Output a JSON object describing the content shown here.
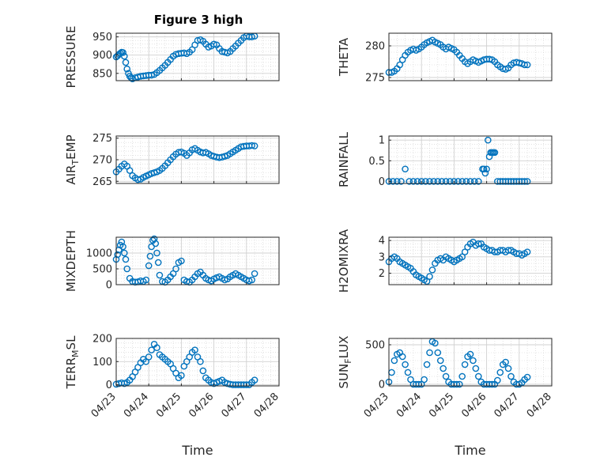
{
  "figure": {
    "title": "Figure 3 high",
    "marker_color": "#0072BD",
    "grid_color": "#d0d0d0",
    "axis_color": "#262626"
  },
  "chart_data": [
    {
      "type": "scatter",
      "title": "Figure 3 high",
      "ylabel": "PRESSURE",
      "xlabel": "",
      "xlim": [
        "04/23",
        "04/28"
      ],
      "ylim": [
        830,
        960
      ],
      "xticks": [],
      "yticks": [
        850,
        900,
        950
      ],
      "x": [
        "04/23 00:00",
        "04/23 01:00",
        "04/23 02:00",
        "04/23 03:00",
        "04/23 04:00",
        "04/23 05:00",
        "04/23 06:00",
        "04/23 07:00",
        "04/23 08:00",
        "04/23 09:00",
        "04/23 10:00",
        "04/23 11:00",
        "04/23 12:00",
        "04/23 14:00",
        "04/23 16:00",
        "04/23 18:00",
        "04/23 20:00",
        "04/23 22:00",
        "04/24 00:00",
        "04/24 02:00",
        "04/24 04:00",
        "04/24 06:00",
        "04/24 08:00",
        "04/24 10:00",
        "04/24 12:00",
        "04/24 14:00",
        "04/24 16:00",
        "04/24 18:00",
        "04/24 20:00",
        "04/24 22:00",
        "04/25 00:00",
        "04/25 02:00",
        "04/25 04:00",
        "04/25 06:00",
        "04/25 08:00",
        "04/25 10:00",
        "04/25 12:00",
        "04/25 14:00",
        "04/25 16:00",
        "04/25 18:00",
        "04/25 20:00",
        "04/25 22:00",
        "04/26 00:00",
        "04/26 02:00",
        "04/26 04:00",
        "04/26 06:00",
        "04/26 08:00",
        "04/26 10:00",
        "04/26 12:00",
        "04/26 14:00",
        "04/26 16:00",
        "04/26 18:00",
        "04/26 20:00",
        "04/26 22:00",
        "04/27 00:00",
        "04/27 02:00",
        "04/27 04:00",
        "04/27 06:00"
      ],
      "values": [
        895,
        898,
        902,
        905,
        908,
        907,
        897,
        880,
        862,
        850,
        842,
        838,
        835,
        838,
        840,
        842,
        843,
        844,
        845,
        845,
        847,
        852,
        858,
        865,
        872,
        880,
        888,
        897,
        902,
        904,
        905,
        906,
        904,
        908,
        915,
        928,
        940,
        942,
        938,
        930,
        922,
        925,
        930,
        928,
        918,
        910,
        908,
        906,
        910,
        918,
        925,
        933,
        940,
        948,
        952,
        950,
        950,
        952
      ]
    },
    {
      "type": "scatter",
      "title": "",
      "ylabel": "THETA",
      "xlabel": "",
      "xlim": [
        "04/23",
        "04/28"
      ],
      "ylim": [
        274.5,
        282
      ],
      "xticks": [],
      "yticks": [
        275,
        280
      ],
      "x": [
        "04/23 00:00",
        "04/23 02:00",
        "04/23 04:00",
        "04/23 06:00",
        "04/23 08:00",
        "04/23 10:00",
        "04/23 12:00",
        "04/23 14:00",
        "04/23 16:00",
        "04/23 18:00",
        "04/23 20:00",
        "04/23 22:00",
        "04/24 00:00",
        "04/24 02:00",
        "04/24 04:00",
        "04/24 06:00",
        "04/24 08:00",
        "04/24 10:00",
        "04/24 12:00",
        "04/24 14:00",
        "04/24 16:00",
        "04/24 18:00",
        "04/24 20:00",
        "04/24 22:00",
        "04/25 00:00",
        "04/25 02:00",
        "04/25 04:00",
        "04/25 06:00",
        "04/25 08:00",
        "04/25 10:00",
        "04/25 12:00",
        "04/25 14:00",
        "04/25 16:00",
        "04/25 18:00",
        "04/25 20:00",
        "04/25 22:00",
        "04/26 00:00",
        "04/26 02:00",
        "04/26 04:00",
        "04/26 06:00",
        "04/26 08:00",
        "04/26 10:00",
        "04/26 12:00",
        "04/26 14:00",
        "04/26 16:00",
        "04/26 18:00",
        "04/26 20:00",
        "04/26 22:00",
        "04/27 00:00",
        "04/27 02:00",
        "04/27 04:00",
        "04/27 06:00"
      ],
      "values": [
        275.8,
        275.8,
        276.0,
        276.4,
        277.0,
        277.8,
        278.5,
        279.0,
        279.3,
        279.5,
        279.3,
        279.5,
        279.8,
        280.2,
        280.5,
        280.7,
        280.9,
        280.6,
        280.4,
        280.2,
        279.8,
        279.5,
        279.8,
        279.6,
        279.4,
        279.0,
        278.5,
        278.0,
        277.5,
        277.2,
        277.5,
        277.8,
        277.6,
        277.4,
        277.6,
        277.8,
        277.9,
        277.9,
        277.8,
        277.5,
        277.0,
        276.7,
        276.4,
        276.3,
        276.5,
        277.0,
        277.3,
        277.4,
        277.3,
        277.2,
        277.0,
        277.0
      ]
    },
    {
      "type": "scatter",
      "title": "",
      "ylabel": "AIR_TEMP",
      "xlabel": "",
      "xlim": [
        "04/23",
        "04/28"
      ],
      "ylim": [
        264.5,
        275.5
      ],
      "xticks": [],
      "yticks": [
        265,
        270,
        275
      ],
      "x": [
        "04/23 00:00",
        "04/23 02:00",
        "04/23 04:00",
        "04/23 06:00",
        "04/23 08:00",
        "04/23 10:00",
        "04/23 12:00",
        "04/23 14:00",
        "04/23 16:00",
        "04/23 18:00",
        "04/23 20:00",
        "04/23 22:00",
        "04/24 00:00",
        "04/24 02:00",
        "04/24 04:00",
        "04/24 06:00",
        "04/24 08:00",
        "04/24 10:00",
        "04/24 12:00",
        "04/24 14:00",
        "04/24 16:00",
        "04/24 18:00",
        "04/24 20:00",
        "04/24 22:00",
        "04/25 00:00",
        "04/25 02:00",
        "04/25 04:00",
        "04/25 06:00",
        "04/25 08:00",
        "04/25 10:00",
        "04/25 12:00",
        "04/25 14:00",
        "04/25 16:00",
        "04/25 18:00",
        "04/25 20:00",
        "04/25 22:00",
        "04/26 00:00",
        "04/26 02:00",
        "04/26 04:00",
        "04/26 06:00",
        "04/26 08:00",
        "04/26 10:00",
        "04/26 12:00",
        "04/26 14:00",
        "04/26 16:00",
        "04/26 18:00",
        "04/26 20:00",
        "04/26 22:00",
        "04/27 00:00",
        "04/27 02:00",
        "04/27 04:00",
        "04/27 06:00"
      ],
      "values": [
        267.2,
        267.8,
        268.5,
        269.0,
        268.5,
        267.5,
        266.3,
        265.8,
        265.4,
        265.5,
        265.9,
        266.2,
        266.5,
        266.8,
        267.0,
        267.2,
        267.5,
        268.0,
        268.6,
        269.3,
        270.0,
        270.7,
        271.3,
        271.7,
        271.8,
        271.5,
        271.0,
        271.6,
        272.3,
        272.6,
        272.2,
        271.8,
        271.6,
        271.7,
        271.4,
        271.0,
        270.8,
        270.6,
        270.5,
        270.6,
        270.8,
        271.0,
        271.4,
        271.8,
        272.2,
        272.6,
        273.0,
        273.1,
        273.2,
        273.2,
        273.3,
        273.2
      ]
    },
    {
      "type": "scatter",
      "title": "",
      "ylabel": "RAINFALL",
      "xlabel": "",
      "xlim": [
        "04/23",
        "04/28"
      ],
      "ylim": [
        -0.05,
        1.1
      ],
      "xticks": [],
      "yticks": [
        0,
        0.5,
        1
      ],
      "x": [
        "04/23 00:00",
        "04/23 03:00",
        "04/23 06:00",
        "04/23 09:00",
        "04/23 12:00",
        "04/23 15:00",
        "04/23 18:00",
        "04/23 21:00",
        "04/24 00:00",
        "04/24 03:00",
        "04/24 06:00",
        "04/24 09:00",
        "04/24 12:00",
        "04/24 15:00",
        "04/24 18:00",
        "04/24 21:00",
        "04/25 00:00",
        "04/25 03:00",
        "04/25 06:00",
        "04/25 09:00",
        "04/25 12:00",
        "04/25 15:00",
        "04/25 18:00",
        "04/25 21:00",
        "04/25 22:00",
        "04/25 23:00",
        "04/26 00:00",
        "04/26 01:00",
        "04/26 02:00",
        "04/26 03:00",
        "04/26 04:00",
        "04/26 05:00",
        "04/26 06:00",
        "04/26 08:00",
        "04/26 10:00",
        "04/26 12:00",
        "04/26 14:00",
        "04/26 16:00",
        "04/26 18:00",
        "04/26 20:00",
        "04/26 22:00",
        "04/27 00:00",
        "04/27 02:00",
        "04/27 04:00",
        "04/27 06:00"
      ],
      "values": [
        0,
        0,
        0,
        0,
        0.3,
        0,
        0,
        0,
        0,
        0,
        0,
        0,
        0,
        0,
        0,
        0,
        0,
        0,
        0,
        0,
        0,
        0,
        0,
        0.3,
        0.3,
        0.2,
        0.3,
        1.0,
        0.6,
        0.7,
        0.7,
        0.7,
        0.7,
        0,
        0,
        0,
        0,
        0,
        0,
        0,
        0,
        0,
        0,
        0,
        0
      ]
    },
    {
      "type": "scatter",
      "title": "",
      "ylabel": "MIXDEPTH",
      "xlabel": "",
      "xlim": [
        "04/23",
        "04/28"
      ],
      "ylim": [
        0,
        1500
      ],
      "xticks": [],
      "yticks": [
        0,
        500,
        1000
      ],
      "x": [
        "04/23 00:00",
        "04/23 01:00",
        "04/23 02:00",
        "04/23 03:00",
        "04/23 04:00",
        "04/23 05:00",
        "04/23 06:00",
        "04/23 07:00",
        "04/23 08:00",
        "04/23 10:00",
        "04/23 12:00",
        "04/23 14:00",
        "04/23 16:00",
        "04/23 18:00",
        "04/23 20:00",
        "04/23 22:00",
        "04/24 00:00",
        "04/24 01:00",
        "04/24 02:00",
        "04/24 03:00",
        "04/24 04:00",
        "04/24 05:00",
        "04/24 06:00",
        "04/24 07:00",
        "04/24 08:00",
        "04/24 10:00",
        "04/24 12:00",
        "04/24 14:00",
        "04/24 16:00",
        "04/24 18:00",
        "04/24 20:00",
        "04/24 22:00",
        "04/25 00:00",
        "04/25 02:00",
        "04/25 04:00",
        "04/25 06:00",
        "04/25 08:00",
        "04/25 10:00",
        "04/25 12:00",
        "04/25 14:00",
        "04/25 16:00",
        "04/25 18:00",
        "04/25 20:00",
        "04/25 22:00",
        "04/26 00:00",
        "04/26 02:00",
        "04/26 04:00",
        "04/26 06:00",
        "04/26 08:00",
        "04/26 10:00",
        "04/26 12:00",
        "04/26 14:00",
        "04/26 16:00",
        "04/26 18:00",
        "04/26 20:00",
        "04/26 22:00",
        "04/27 00:00",
        "04/27 02:00",
        "04/27 04:00",
        "04/27 06:00"
      ],
      "values": [
        800,
        950,
        1100,
        1250,
        1350,
        1200,
        1000,
        800,
        500,
        200,
        100,
        80,
        90,
        120,
        100,
        150,
        600,
        900,
        1200,
        1400,
        1450,
        1300,
        1000,
        700,
        300,
        100,
        80,
        150,
        250,
        350,
        500,
        700,
        750,
        150,
        100,
        80,
        150,
        250,
        350,
        400,
        300,
        200,
        150,
        120,
        180,
        220,
        250,
        200,
        150,
        180,
        250,
        300,
        350,
        300,
        250,
        200,
        150,
        120,
        150,
        350
      ]
    },
    {
      "type": "scatter",
      "title": "",
      "ylabel": "H2OMIXRA",
      "xlabel": "",
      "xlim": [
        "04/23",
        "04/28"
      ],
      "ylim": [
        1.3,
        4.2
      ],
      "xticks": [],
      "yticks": [
        2,
        3,
        4
      ],
      "x": [
        "04/23 00:00",
        "04/23 02:00",
        "04/23 04:00",
        "04/23 06:00",
        "04/23 08:00",
        "04/23 10:00",
        "04/23 12:00",
        "04/23 14:00",
        "04/23 16:00",
        "04/23 18:00",
        "04/23 20:00",
        "04/23 22:00",
        "04/24 00:00",
        "04/24 02:00",
        "04/24 04:00",
        "04/24 06:00",
        "04/24 08:00",
        "04/24 10:00",
        "04/24 12:00",
        "04/24 14:00",
        "04/24 16:00",
        "04/24 18:00",
        "04/24 20:00",
        "04/24 22:00",
        "04/25 00:00",
        "04/25 02:00",
        "04/25 04:00",
        "04/25 06:00",
        "04/25 08:00",
        "04/25 10:00",
        "04/25 12:00",
        "04/25 14:00",
        "04/25 16:00",
        "04/25 18:00",
        "04/25 20:00",
        "04/25 22:00",
        "04/26 00:00",
        "04/26 02:00",
        "04/26 04:00",
        "04/26 06:00",
        "04/26 08:00",
        "04/26 10:00",
        "04/26 12:00",
        "04/26 14:00",
        "04/26 16:00",
        "04/26 18:00",
        "04/26 20:00",
        "04/26 22:00",
        "04/27 00:00",
        "04/27 02:00",
        "04/27 04:00",
        "04/27 06:00"
      ],
      "values": [
        2.7,
        2.9,
        3.0,
        2.9,
        2.7,
        2.6,
        2.5,
        2.4,
        2.3,
        2.1,
        1.9,
        1.8,
        1.7,
        1.6,
        1.5,
        1.8,
        2.2,
        2.6,
        2.8,
        2.9,
        2.8,
        3.0,
        2.9,
        2.8,
        2.7,
        2.8,
        2.9,
        3.0,
        3.3,
        3.6,
        3.8,
        3.9,
        3.7,
        3.8,
        3.8,
        3.6,
        3.5,
        3.4,
        3.4,
        3.3,
        3.3,
        3.4,
        3.4,
        3.3,
        3.4,
        3.4,
        3.3,
        3.2,
        3.2,
        3.1,
        3.2,
        3.3
      ]
    },
    {
      "type": "scatter",
      "title": "",
      "ylabel": "TERR_MSL",
      "xlabel": "Time",
      "xlim": [
        "04/23",
        "04/28"
      ],
      "ylim": [
        -5,
        200
      ],
      "xticks": [
        "04/23",
        "04/24",
        "04/25",
        "04/26",
        "04/27",
        "04/28"
      ],
      "yticks": [
        0,
        100,
        200
      ],
      "x": [
        "04/23 00:00",
        "04/23 02:00",
        "04/23 04:00",
        "04/23 06:00",
        "04/23 08:00",
        "04/23 10:00",
        "04/23 12:00",
        "04/23 14:00",
        "04/23 16:00",
        "04/23 18:00",
        "04/23 20:00",
        "04/23 22:00",
        "04/24 00:00",
        "04/24 02:00",
        "04/24 04:00",
        "04/24 06:00",
        "04/24 08:00",
        "04/24 10:00",
        "04/24 12:00",
        "04/24 14:00",
        "04/24 16:00",
        "04/24 18:00",
        "04/24 20:00",
        "04/24 22:00",
        "04/25 00:00",
        "04/25 02:00",
        "04/25 04:00",
        "04/25 06:00",
        "04/25 08:00",
        "04/25 10:00",
        "04/25 12:00",
        "04/25 14:00",
        "04/25 16:00",
        "04/25 18:00",
        "04/25 20:00",
        "04/25 22:00",
        "04/26 00:00",
        "04/26 02:00",
        "04/26 04:00",
        "04/26 06:00",
        "04/26 08:00",
        "04/26 10:00",
        "04/26 12:00",
        "04/26 14:00",
        "04/26 16:00",
        "04/26 18:00",
        "04/26 20:00",
        "04/26 22:00",
        "04/27 00:00",
        "04/27 02:00",
        "04/27 04:00",
        "04/27 06:00"
      ],
      "values": [
        2,
        5,
        8,
        5,
        10,
        20,
        35,
        55,
        75,
        95,
        110,
        100,
        120,
        150,
        175,
        160,
        130,
        120,
        110,
        100,
        90,
        70,
        50,
        30,
        40,
        80,
        100,
        120,
        140,
        150,
        120,
        100,
        60,
        30,
        20,
        10,
        5,
        10,
        15,
        20,
        10,
        5,
        2,
        0,
        0,
        0,
        0,
        0,
        0,
        0,
        10,
        20
      ]
    },
    {
      "type": "scatter",
      "title": "",
      "ylabel": "SUN_FLUX",
      "xlabel": "Time",
      "xlim": [
        "04/23",
        "04/28"
      ],
      "ylim": [
        -20,
        580
      ],
      "xticks": [
        "04/23",
        "04/24",
        "04/25",
        "04/26",
        "04/27",
        "04/28"
      ],
      "yticks": [
        0,
        500
      ],
      "x": [
        "04/23 00:00",
        "04/23 02:00",
        "04/23 04:00",
        "04/23 06:00",
        "04/23 08:00",
        "04/23 10:00",
        "04/23 12:00",
        "04/23 14:00",
        "04/23 16:00",
        "04/23 18:00",
        "04/23 20:00",
        "04/23 22:00",
        "04/24 00:00",
        "04/24 02:00",
        "04/24 04:00",
        "04/24 06:00",
        "04/24 08:00",
        "04/24 10:00",
        "04/24 12:00",
        "04/24 14:00",
        "04/24 16:00",
        "04/24 18:00",
        "04/24 20:00",
        "04/24 22:00",
        "04/25 00:00",
        "04/25 02:00",
        "04/25 04:00",
        "04/25 06:00",
        "04/25 08:00",
        "04/25 10:00",
        "04/25 12:00",
        "04/25 14:00",
        "04/25 16:00",
        "04/25 18:00",
        "04/25 20:00",
        "04/25 22:00",
        "04/26 00:00",
        "04/26 02:00",
        "04/26 04:00",
        "04/26 06:00",
        "04/26 08:00",
        "04/26 10:00",
        "04/26 12:00",
        "04/26 14:00",
        "04/26 16:00",
        "04/26 18:00",
        "04/26 20:00",
        "04/26 22:00",
        "04/27 00:00",
        "04/27 02:00",
        "04/27 04:00",
        "04/27 06:00"
      ],
      "values": [
        30,
        150,
        300,
        380,
        400,
        350,
        250,
        150,
        60,
        0,
        0,
        0,
        0,
        60,
        250,
        400,
        540,
        520,
        400,
        300,
        200,
        100,
        30,
        0,
        0,
        0,
        0,
        100,
        250,
        350,
        380,
        300,
        200,
        100,
        30,
        0,
        0,
        0,
        0,
        0,
        50,
        150,
        250,
        280,
        200,
        100,
        30,
        0,
        0,
        20,
        60,
        90
      ]
    }
  ]
}
